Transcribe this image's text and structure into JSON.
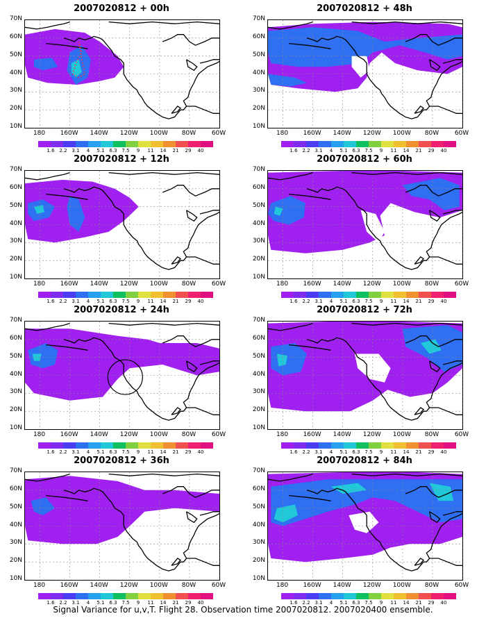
{
  "caption": "Signal Variance for u,v,T. Flight 28. Observation time 2007020812. 2007020400 ensemble.",
  "y_ticks": [
    "70N",
    "60N",
    "50N",
    "40N",
    "30N",
    "20N",
    "10N"
  ],
  "x_ticks": [
    "180",
    "160W",
    "140W",
    "120W",
    "100W",
    "80W",
    "60W"
  ],
  "colorbar": {
    "labels": [
      "1.6",
      "2.2",
      "3.1",
      "4",
      "5.1",
      "6.3",
      "7.5",
      "9",
      "11",
      "14",
      "21",
      "29",
      "40"
    ],
    "colors": [
      "#a020f0",
      "#7e2cf0",
      "#4a3df5",
      "#2f6ff2",
      "#28a0f0",
      "#20c8d8",
      "#10c060",
      "#80d040",
      "#e0e040",
      "#f0c030",
      "#f09030",
      "#f05050",
      "#f02070",
      "#e01080"
    ]
  },
  "panels": [
    {
      "title": "2007020812 + 00h"
    },
    {
      "title": "2007020812 + 48h"
    },
    {
      "title": "2007020812 + 12h"
    },
    {
      "title": "2007020812 + 60h"
    },
    {
      "title": "2007020812 + 24h"
    },
    {
      "title": "2007020812 + 72h"
    },
    {
      "title": "2007020812 + 36h"
    },
    {
      "title": "2007020812 + 84h"
    }
  ]
}
